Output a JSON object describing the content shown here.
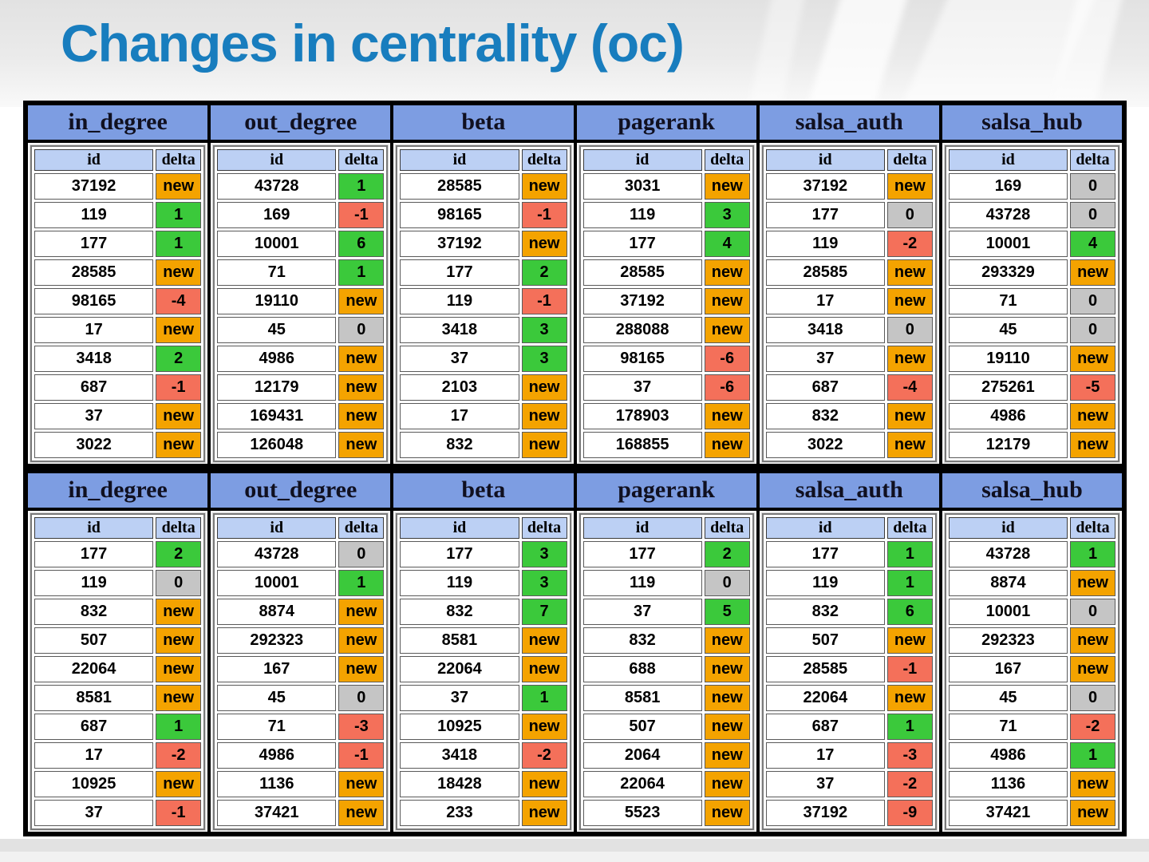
{
  "slide": {
    "title": "Changes in centrality (oc)"
  },
  "colors": {
    "title_blue": "#187dbe",
    "header_blue": "#7d9de2",
    "subheader_blue": "#bcd0f4",
    "new_orange": "#f4a300",
    "pos_green": "#3bc93b",
    "neg_red": "#f4705a",
    "zero_gray": "#c5c5c5"
  },
  "table_columns": {
    "id_label": "id",
    "delta_label": "delta"
  },
  "tables": [
    {
      "name": "top",
      "groups": [
        {
          "label": "in_degree",
          "rows": [
            [
              "37192",
              "new"
            ],
            [
              "119",
              "1"
            ],
            [
              "177",
              "1"
            ],
            [
              "28585",
              "new"
            ],
            [
              "98165",
              "-4"
            ],
            [
              "17",
              "new"
            ],
            [
              "3418",
              "2"
            ],
            [
              "687",
              "-1"
            ],
            [
              "37",
              "new"
            ],
            [
              "3022",
              "new"
            ]
          ]
        },
        {
          "label": "out_degree",
          "rows": [
            [
              "43728",
              "1"
            ],
            [
              "169",
              "-1"
            ],
            [
              "10001",
              "6"
            ],
            [
              "71",
              "1"
            ],
            [
              "19110",
              "new"
            ],
            [
              "45",
              "0"
            ],
            [
              "4986",
              "new"
            ],
            [
              "12179",
              "new"
            ],
            [
              "169431",
              "new"
            ],
            [
              "126048",
              "new"
            ]
          ]
        },
        {
          "label": "beta",
          "rows": [
            [
              "28585",
              "new"
            ],
            [
              "98165",
              "-1"
            ],
            [
              "37192",
              "new"
            ],
            [
              "177",
              "2"
            ],
            [
              "119",
              "-1"
            ],
            [
              "3418",
              "3"
            ],
            [
              "37",
              "3"
            ],
            [
              "2103",
              "new"
            ],
            [
              "17",
              "new"
            ],
            [
              "832",
              "new"
            ]
          ]
        },
        {
          "label": "pagerank",
          "rows": [
            [
              "3031",
              "new"
            ],
            [
              "119",
              "3"
            ],
            [
              "177",
              "4"
            ],
            [
              "28585",
              "new"
            ],
            [
              "37192",
              "new"
            ],
            [
              "288088",
              "new"
            ],
            [
              "98165",
              "-6"
            ],
            [
              "37",
              "-6"
            ],
            [
              "178903",
              "new"
            ],
            [
              "168855",
              "new"
            ]
          ]
        },
        {
          "label": "salsa_auth",
          "rows": [
            [
              "37192",
              "new"
            ],
            [
              "177",
              "0"
            ],
            [
              "119",
              "-2"
            ],
            [
              "28585",
              "new"
            ],
            [
              "17",
              "new"
            ],
            [
              "3418",
              "0"
            ],
            [
              "37",
              "new"
            ],
            [
              "687",
              "-4"
            ],
            [
              "832",
              "new"
            ],
            [
              "3022",
              "new"
            ]
          ]
        },
        {
          "label": "salsa_hub",
          "rows": [
            [
              "169",
              "0"
            ],
            [
              "43728",
              "0"
            ],
            [
              "10001",
              "4"
            ],
            [
              "293329",
              "new"
            ],
            [
              "71",
              "0"
            ],
            [
              "45",
              "0"
            ],
            [
              "19110",
              "new"
            ],
            [
              "275261",
              "-5"
            ],
            [
              "4986",
              "new"
            ],
            [
              "12179",
              "new"
            ]
          ]
        }
      ]
    },
    {
      "name": "bottom",
      "groups": [
        {
          "label": "in_degree",
          "rows": [
            [
              "177",
              "2"
            ],
            [
              "119",
              "0"
            ],
            [
              "832",
              "new"
            ],
            [
              "507",
              "new"
            ],
            [
              "22064",
              "new"
            ],
            [
              "8581",
              "new"
            ],
            [
              "687",
              "1"
            ],
            [
              "17",
              "-2"
            ],
            [
              "10925",
              "new"
            ],
            [
              "37",
              "-1"
            ]
          ]
        },
        {
          "label": "out_degree",
          "rows": [
            [
              "43728",
              "0"
            ],
            [
              "10001",
              "1"
            ],
            [
              "8874",
              "new"
            ],
            [
              "292323",
              "new"
            ],
            [
              "167",
              "new"
            ],
            [
              "45",
              "0"
            ],
            [
              "71",
              "-3"
            ],
            [
              "4986",
              "-1"
            ],
            [
              "1136",
              "new"
            ],
            [
              "37421",
              "new"
            ]
          ]
        },
        {
          "label": "beta",
          "rows": [
            [
              "177",
              "3"
            ],
            [
              "119",
              "3"
            ],
            [
              "832",
              "7"
            ],
            [
              "8581",
              "new"
            ],
            [
              "22064",
              "new"
            ],
            [
              "37",
              "1"
            ],
            [
              "10925",
              "new"
            ],
            [
              "3418",
              "-2"
            ],
            [
              "18428",
              "new"
            ],
            [
              "233",
              "new"
            ]
          ]
        },
        {
          "label": "pagerank",
          "rows": [
            [
              "177",
              "2"
            ],
            [
              "119",
              "0"
            ],
            [
              "37",
              "5"
            ],
            [
              "832",
              "new"
            ],
            [
              "688",
              "new"
            ],
            [
              "8581",
              "new"
            ],
            [
              "507",
              "new"
            ],
            [
              "2064",
              "new"
            ],
            [
              "22064",
              "new"
            ],
            [
              "5523",
              "new"
            ]
          ]
        },
        {
          "label": "salsa_auth",
          "rows": [
            [
              "177",
              "1"
            ],
            [
              "119",
              "1"
            ],
            [
              "832",
              "6"
            ],
            [
              "507",
              "new"
            ],
            [
              "28585",
              "-1"
            ],
            [
              "22064",
              "new"
            ],
            [
              "687",
              "1"
            ],
            [
              "17",
              "-3"
            ],
            [
              "37",
              "-2"
            ],
            [
              "37192",
              "-9"
            ]
          ]
        },
        {
          "label": "salsa_hub",
          "rows": [
            [
              "43728",
              "1"
            ],
            [
              "8874",
              "new"
            ],
            [
              "10001",
              "0"
            ],
            [
              "292323",
              "new"
            ],
            [
              "167",
              "new"
            ],
            [
              "45",
              "0"
            ],
            [
              "71",
              "-2"
            ],
            [
              "4986",
              "1"
            ],
            [
              "1136",
              "new"
            ],
            [
              "37421",
              "new"
            ]
          ]
        }
      ]
    }
  ]
}
